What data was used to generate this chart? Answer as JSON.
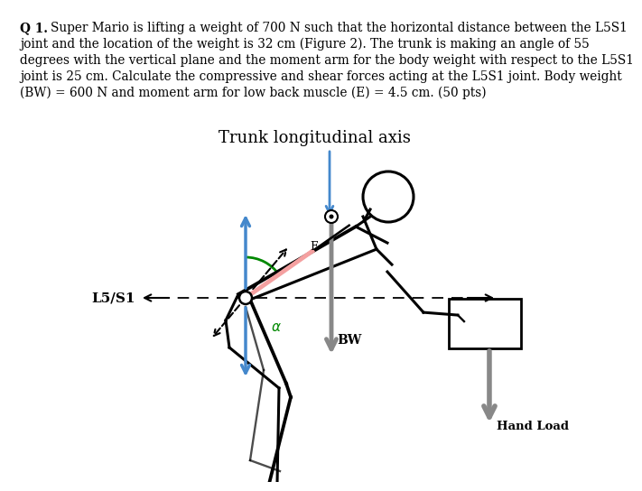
{
  "title_text": "Trunk longitudinal axis",
  "title_fontsize": 13,
  "para_line1": "Q 1. Super Mario is lifting a weight of 700 N such that the horizontal distance between the L5S1",
  "para_line2": "joint and the location of the weight is 32 cm (Figure 2). The trunk is making an angle of 55",
  "para_line3": "degrees with the vertical plane and the moment arm for the body weight with respect to the L5S1",
  "para_line4": "joint is 25 cm. Calculate the compressive and shear forces acting at the L5S1 joint. Body weight",
  "para_line5": "(BW) = 600 N and moment arm for low back muscle (E) = 4.5 cm. (50 pts)",
  "para_fontsize": 9.8,
  "bg_color": "#ffffff",
  "text_color": "#000000",
  "blue_color": "#4488cc",
  "pink_color": "#f4a0a0",
  "green_color": "#008800",
  "gray_color": "#888888",
  "l5s1_label": "L5/S1",
  "bw_label": "BW",
  "handload_label": "Hand Load",
  "e_label": "E"
}
